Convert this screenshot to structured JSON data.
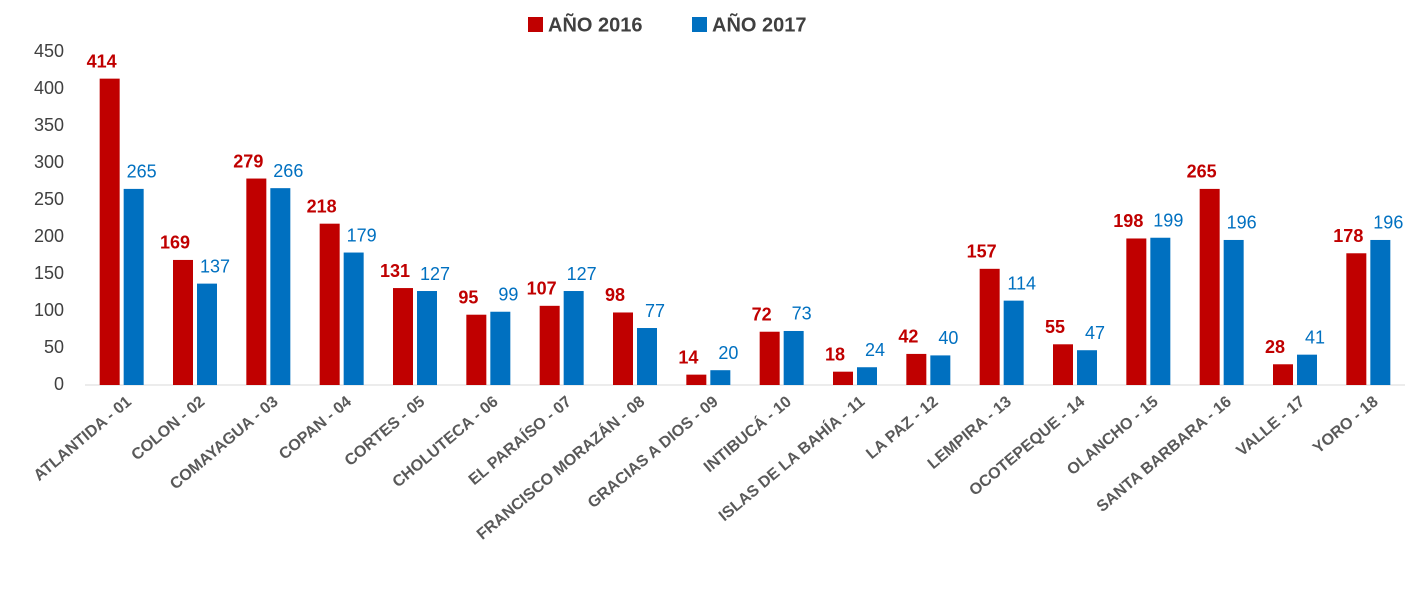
{
  "chart_data": {
    "type": "bar",
    "categories": [
      "ATLANTIDA - 01",
      "COLON - 02",
      "COMAYAGUA - 03",
      "COPAN - 04",
      "CORTES - 05",
      "CHOLUTECA - 06",
      "EL PARAÍSO - 07",
      "FRANCISCO MORAZÁN - 08",
      "GRACIAS A DIOS - 09",
      "INTIBUCÁ - 10",
      "ISLAS DE LA BAHÍA - 11",
      "LA PAZ - 12",
      "LEMPIRA - 13",
      "OCOTEPEQUE - 14",
      "OLANCHO - 15",
      "SANTA BARBARA - 16",
      "VALLE - 17",
      "YORO - 18"
    ],
    "series": [
      {
        "name": "AÑO 2016",
        "color": "#c00000",
        "values": [
          414,
          169,
          279,
          218,
          131,
          95,
          107,
          98,
          14,
          72,
          18,
          42,
          157,
          55,
          198,
          265,
          28,
          178
        ]
      },
      {
        "name": "AÑO 2017",
        "color": "#0070c0",
        "values": [
          265,
          137,
          266,
          179,
          127,
          99,
          127,
          77,
          20,
          73,
          24,
          40,
          114,
          47,
          199,
          196,
          41,
          196
        ]
      }
    ],
    "ylim": [
      0,
      450
    ],
    "yticks": [
      0,
      50,
      100,
      150,
      200,
      250,
      300,
      350,
      400,
      450
    ],
    "grid": false,
    "legend": "top"
  }
}
